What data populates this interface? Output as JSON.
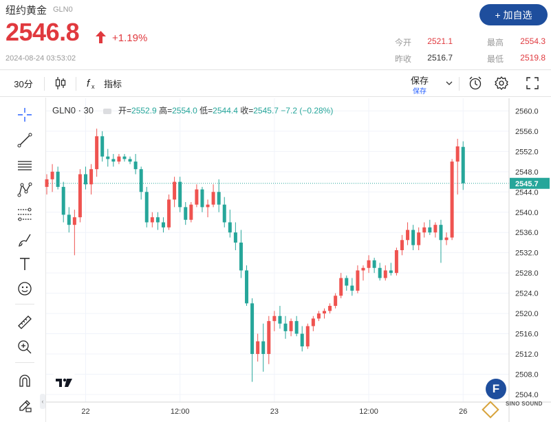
{
  "quote": {
    "name": "纽约黄金",
    "code": "GLN0",
    "price": "2546.8",
    "change_pct": "+1.19%",
    "timestamp": "2024-08-24 03:53:02",
    "stats": [
      {
        "label": "今开",
        "value": "2521.1",
        "color": "#e0393e"
      },
      {
        "label": "最高",
        "value": "2554.3",
        "color": "#e0393e"
      },
      {
        "label": "昨收",
        "value": "2516.7",
        "color": "#333333"
      },
      {
        "label": "最低",
        "value": "2519.8",
        "color": "#e0393e"
      }
    ],
    "add_button": "+ 加自选"
  },
  "toolbar": {
    "interval": "30分",
    "indicators": "指标",
    "save": "保存",
    "save_sub": "保存",
    "icons": [
      "candles-icon",
      "function-icon",
      "chevron-down-icon",
      "alert-icon",
      "settings-icon",
      "fullscreen-icon"
    ]
  },
  "left_tools": [
    "crosshair-icon",
    "trendline-icon",
    "horizontal-lines-icon",
    "pattern-icon",
    "fibonacci-icon",
    "brush-icon",
    "text-icon",
    "emoji-icon",
    "ruler-icon",
    "zoom-in-icon",
    "magnet-icon",
    "lock-pencil-icon"
  ],
  "legend": {
    "symbol": "GLN0 · 30",
    "open_label": "开",
    "open": "2552.9",
    "high_label": "高",
    "high": "2554.0",
    "low_label": "低",
    "low": "2544.4",
    "close_label": "收",
    "close": "2545.7",
    "change": "−7.2 (−0.28%)"
  },
  "watermark": {
    "letter": "F",
    "text": "SINO SOUND"
  },
  "colors": {
    "up": "#ef5350",
    "down": "#26a69a",
    "price_red": "#e0393e",
    "brand": "#1e4e9d",
    "last_price": "#26a69a"
  },
  "chart_data": {
    "type": "candlestick",
    "interval": "30分",
    "y_ticks": [
      2504,
      2508,
      2512,
      2516,
      2520,
      2524,
      2528,
      2532,
      2536,
      2540,
      2544,
      2548,
      2552,
      2556,
      2560
    ],
    "ylim": [
      2502.5,
      2562.5
    ],
    "x_labels": [
      {
        "label": "22",
        "index": 7
      },
      {
        "label": "12:00",
        "index": 24
      },
      {
        "label": "23",
        "index": 41
      },
      {
        "label": "12:00",
        "index": 58
      },
      {
        "label": "26",
        "index": 75
      }
    ],
    "last_price": 2545.7,
    "candles": [
      [
        2545.0,
        2547.5,
        2543.5,
        2546.5
      ],
      [
        2546.5,
        2549.5,
        2544.0,
        2548.0
      ],
      [
        2548.0,
        2549.0,
        2544.5,
        2545.0
      ],
      [
        2545.0,
        2546.0,
        2538.0,
        2539.5
      ],
      [
        2539.5,
        2541.0,
        2536.0,
        2537.5
      ],
      [
        2537.5,
        2540.5,
        2531.5,
        2539.0
      ],
      [
        2539.0,
        2548.5,
        2538.0,
        2547.5
      ],
      [
        2547.5,
        2549.0,
        2544.5,
        2545.5
      ],
      [
        2545.5,
        2549.5,
        2543.5,
        2548.5
      ],
      [
        2548.5,
        2556.5,
        2547.0,
        2555.0
      ],
      [
        2555.0,
        2556.0,
        2550.0,
        2551.0
      ],
      [
        2551.0,
        2552.5,
        2549.0,
        2550.5
      ],
      [
        2550.5,
        2551.5,
        2549.0,
        2550.0
      ],
      [
        2550.0,
        2551.5,
        2549.5,
        2551.0
      ],
      [
        2551.0,
        2551.5,
        2550.0,
        2550.5
      ],
      [
        2550.5,
        2551.0,
        2549.5,
        2550.0
      ],
      [
        2550.0,
        2551.5,
        2547.5,
        2548.5
      ],
      [
        2548.5,
        2549.0,
        2542.5,
        2544.0
      ],
      [
        2544.0,
        2545.0,
        2537.0,
        2538.0
      ],
      [
        2538.0,
        2540.0,
        2537.0,
        2539.0
      ],
      [
        2539.0,
        2540.0,
        2536.5,
        2538.0
      ],
      [
        2538.0,
        2539.0,
        2536.0,
        2537.0
      ],
      [
        2537.0,
        2543.5,
        2536.5,
        2542.5
      ],
      [
        2542.5,
        2547.0,
        2541.0,
        2546.0
      ],
      [
        2546.0,
        2547.0,
        2540.0,
        2541.0
      ],
      [
        2541.0,
        2542.0,
        2537.5,
        2538.5
      ],
      [
        2538.5,
        2542.0,
        2538.0,
        2541.5
      ],
      [
        2541.5,
        2545.5,
        2541.0,
        2544.5
      ],
      [
        2544.5,
        2545.0,
        2540.0,
        2541.0
      ],
      [
        2541.0,
        2542.5,
        2539.0,
        2541.5
      ],
      [
        2541.5,
        2545.5,
        2541.0,
        2544.0
      ],
      [
        2544.0,
        2546.5,
        2540.0,
        2541.5
      ],
      [
        2541.5,
        2543.0,
        2537.0,
        2538.0
      ],
      [
        2538.0,
        2540.5,
        2535.0,
        2536.0
      ],
      [
        2536.0,
        2538.0,
        2532.5,
        2534.0
      ],
      [
        2534.0,
        2536.5,
        2527.0,
        2528.5
      ],
      [
        2528.5,
        2529.5,
        2521.5,
        2522.0
      ],
      [
        2522.0,
        2523.0,
        2506.5,
        2512.0
      ],
      [
        2512.0,
        2516.0,
        2510.5,
        2514.5
      ],
      [
        2514.5,
        2518.0,
        2508.5,
        2512.0
      ],
      [
        2512.0,
        2519.5,
        2510.0,
        2518.5
      ],
      [
        2518.5,
        2520.5,
        2516.5,
        2519.5
      ],
      [
        2519.5,
        2521.5,
        2517.0,
        2518.0
      ],
      [
        2518.0,
        2519.5,
        2515.0,
        2516.5
      ],
      [
        2516.5,
        2519.0,
        2515.5,
        2518.5
      ],
      [
        2518.5,
        2519.5,
        2515.5,
        2516.0
      ],
      [
        2516.0,
        2517.5,
        2512.5,
        2513.5
      ],
      [
        2513.5,
        2518.0,
        2513.0,
        2517.5
      ],
      [
        2517.5,
        2519.5,
        2516.5,
        2519.0
      ],
      [
        2519.0,
        2520.5,
        2518.5,
        2520.0
      ],
      [
        2520.0,
        2521.0,
        2519.0,
        2520.5
      ],
      [
        2520.5,
        2522.0,
        2520.0,
        2521.5
      ],
      [
        2521.5,
        2524.0,
        2521.0,
        2523.5
      ],
      [
        2523.5,
        2528.0,
        2523.0,
        2527.0
      ],
      [
        2527.0,
        2527.5,
        2524.5,
        2525.5
      ],
      [
        2525.5,
        2527.0,
        2523.5,
        2524.5
      ],
      [
        2524.5,
        2529.5,
        2524.0,
        2528.5
      ],
      [
        2528.5,
        2529.5,
        2526.5,
        2529.0
      ],
      [
        2529.0,
        2531.5,
        2528.0,
        2530.5
      ],
      [
        2530.5,
        2531.0,
        2528.0,
        2529.0
      ],
      [
        2529.0,
        2530.0,
        2526.5,
        2527.0
      ],
      [
        2527.0,
        2529.5,
        2526.5,
        2528.5
      ],
      [
        2528.5,
        2530.0,
        2527.5,
        2528.0
      ],
      [
        2528.0,
        2533.0,
        2527.5,
        2532.5
      ],
      [
        2532.5,
        2535.5,
        2531.5,
        2534.5
      ],
      [
        2534.5,
        2538.0,
        2533.5,
        2536.5
      ],
      [
        2536.5,
        2537.5,
        2532.5,
        2533.5
      ],
      [
        2533.5,
        2537.0,
        2532.5,
        2536.0
      ],
      [
        2536.0,
        2538.0,
        2535.0,
        2537.0
      ],
      [
        2537.0,
        2538.5,
        2535.5,
        2536.0
      ],
      [
        2536.0,
        2538.0,
        2535.0,
        2537.5
      ],
      [
        2537.5,
        2538.5,
        2530.0,
        2534.5
      ],
      [
        2534.5,
        2536.0,
        2533.5,
        2535.0
      ],
      [
        2535.0,
        2550.5,
        2534.5,
        2550.0
      ],
      [
        2550.0,
        2554.5,
        2543.5,
        2553.0
      ],
      [
        2552.9,
        2554.0,
        2544.4,
        2545.7
      ]
    ]
  }
}
